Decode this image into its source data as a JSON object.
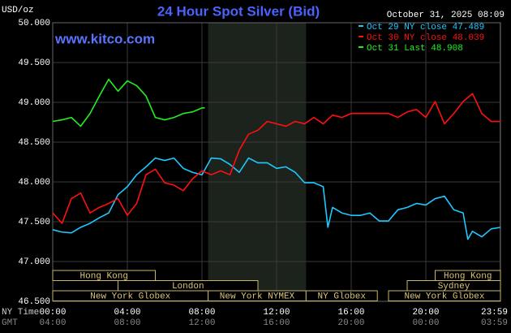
{
  "chart_data": {
    "type": "line",
    "title": "24 Hour Spot Silver (Bid)",
    "website": "www.kitco.com",
    "unit_label": "USD/oz",
    "timestamp": "October 31, 2025 08:09",
    "x_row_label": "NY Time",
    "x2_row_label": "GMT",
    "xlim": [
      0,
      24
    ],
    "ylim": [
      46.5,
      50
    ],
    "yticks": [
      {
        "value": 46.5,
        "label": "46.500"
      },
      {
        "value": 47,
        "label": "47.000"
      },
      {
        "value": 47.5,
        "label": "47.500"
      },
      {
        "value": 48,
        "label": "48.000"
      },
      {
        "value": 48.5,
        "label": "48.500"
      },
      {
        "value": 49,
        "label": "49.000"
      },
      {
        "value": 49.5,
        "label": "49.500"
      },
      {
        "value": 50,
        "label": "50.000"
      }
    ],
    "xticks": [
      {
        "value": 0,
        "label": "00:00"
      },
      {
        "value": 4,
        "label": "04:00"
      },
      {
        "value": 8,
        "label": "08:00"
      },
      {
        "value": 12,
        "label": "12:00"
      },
      {
        "value": 16,
        "label": "16:00"
      },
      {
        "value": 20,
        "label": "20:00"
      },
      {
        "value": 23.98,
        "label": "23:59"
      }
    ],
    "x2ticks": [
      {
        "value": 0,
        "label": "04:00"
      },
      {
        "value": 4,
        "label": "08:00"
      },
      {
        "value": 8,
        "label": "12:00"
      },
      {
        "value": 12,
        "label": "16:00"
      },
      {
        "value": 16,
        "label": "20:00"
      },
      {
        "value": 20,
        "label": "00:00"
      },
      {
        "value": 23.98,
        "label": "03:59"
      }
    ],
    "highlight": [
      8.33,
      13.58
    ],
    "series": [
      {
        "name": "Oct 29 NY close 47.489",
        "color": "#1ec8ff",
        "x": [
          0,
          0.5,
          1,
          1.5,
          2,
          2.5,
          3,
          3.5,
          4,
          4.5,
          5,
          5.5,
          6,
          6.5,
          7,
          7.5,
          8,
          8.5,
          9,
          9.5,
          10,
          10.5,
          11,
          11.5,
          12,
          12.5,
          13,
          13.5,
          14,
          14.5,
          14.75,
          15,
          15.5,
          16,
          16.5,
          17,
          17.5,
          18,
          18.5,
          19,
          19.5,
          20,
          20.5,
          21,
          21.5,
          22,
          22.25,
          22.5,
          23,
          23.5,
          24
        ],
        "values": [
          47.4,
          47.37,
          47.36,
          47.43,
          47.48,
          47.55,
          47.61,
          47.84,
          47.94,
          48.09,
          48.19,
          48.3,
          48.27,
          48.3,
          48.17,
          48.12,
          48.09,
          48.3,
          48.29,
          48.22,
          48.12,
          48.3,
          48.24,
          48.24,
          48.17,
          48.19,
          48.12,
          47.99,
          47.99,
          47.94,
          47.43,
          47.68,
          47.61,
          47.58,
          47.58,
          47.61,
          47.51,
          47.51,
          47.65,
          47.68,
          47.73,
          47.71,
          47.79,
          47.82,
          47.65,
          47.61,
          47.28,
          47.38,
          47.31,
          47.41,
          47.43
        ]
      },
      {
        "name": "Oct 30 NY close 48.039",
        "color": "#ff1010",
        "x": [
          0,
          0.5,
          1,
          1.5,
          2,
          2.5,
          3,
          3.5,
          4,
          4.5,
          5,
          5.5,
          6,
          6.5,
          7,
          7.5,
          8,
          8.5,
          9,
          9.5,
          10,
          10.5,
          11,
          11.5,
          12,
          12.5,
          13,
          13.5,
          14,
          14.5,
          15,
          15.5,
          16,
          16.5,
          17,
          17.5,
          18,
          18.5,
          19,
          19.5,
          20,
          20.5,
          21,
          21.5,
          22,
          22.5,
          23,
          23.5,
          24
        ],
        "values": [
          47.61,
          47.48,
          47.79,
          47.86,
          47.61,
          47.68,
          47.73,
          47.79,
          47.58,
          47.73,
          48.09,
          48.16,
          47.99,
          47.96,
          47.89,
          48.04,
          48.14,
          48.09,
          48.14,
          48.09,
          48.4,
          48.6,
          48.65,
          48.76,
          48.73,
          48.7,
          48.76,
          48.73,
          48.81,
          48.73,
          48.84,
          48.81,
          48.86,
          48.86,
          48.86,
          48.86,
          48.86,
          48.81,
          48.88,
          48.91,
          48.81,
          49.01,
          48.73,
          48.86,
          49.01,
          49.11,
          48.86,
          48.76,
          48.76
        ]
      },
      {
        "name": "Oct 31 Last 48.908",
        "color": "#22ee22",
        "x": [
          0,
          0.5,
          1,
          1.5,
          2,
          2.5,
          3,
          3.5,
          4,
          4.5,
          5,
          5.5,
          6,
          6.5,
          7,
          7.5,
          8,
          8.15
        ],
        "values": [
          48.76,
          48.78,
          48.81,
          48.7,
          48.86,
          49.08,
          49.29,
          49.14,
          49.27,
          49.21,
          49.08,
          48.81,
          48.78,
          48.81,
          48.86,
          48.88,
          48.93,
          48.93
        ]
      }
    ],
    "session_rows": [
      [
        {
          "name": "Hong Kong",
          "start": 0,
          "end": 5.5
        },
        {
          "name": "Hong Kong",
          "start": 20.5,
          "end": 24
        }
      ],
      [
        {
          "name": "London",
          "start": 3.5,
          "end": 11
        },
        {
          "name": "Sydney",
          "start": 19,
          "end": 24
        }
      ],
      [
        {
          "name": "New York Globex",
          "start": 0,
          "end": 8.33
        },
        {
          "name": "New York NYMEX",
          "start": 8.33,
          "end": 13.58
        },
        {
          "name": "NY Globex",
          "start": 13.58,
          "end": 17.4
        },
        {
          "name": "New York Globex",
          "start": 18,
          "end": 24
        }
      ]
    ]
  }
}
